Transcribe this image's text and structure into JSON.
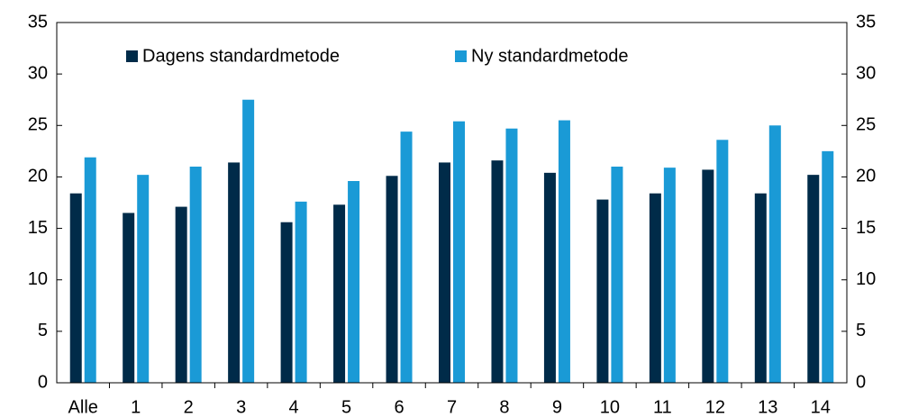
{
  "chart_data": {
    "type": "bar",
    "categories": [
      "Alle",
      "1",
      "2",
      "3",
      "4",
      "5",
      "6",
      "7",
      "8",
      "9",
      "10",
      "11",
      "12",
      "13",
      "14"
    ],
    "series": [
      {
        "name": "Dagens standardmetode",
        "color": "#002b49",
        "values": [
          18.4,
          16.5,
          17.1,
          21.4,
          15.6,
          17.3,
          20.1,
          21.4,
          21.6,
          20.4,
          17.8,
          18.4,
          20.7,
          18.4,
          20.2
        ]
      },
      {
        "name": "Ny standardmetode",
        "color": "#1a9ad6",
        "values": [
          21.9,
          20.2,
          21.0,
          27.5,
          17.6,
          19.6,
          24.4,
          25.4,
          24.7,
          25.5,
          21.0,
          20.9,
          23.6,
          25.0,
          22.5
        ]
      }
    ],
    "ylim": [
      0,
      35
    ],
    "yticks": [
      0,
      5,
      10,
      15,
      20,
      25,
      30,
      35
    ],
    "y2lim": [
      0,
      35
    ],
    "y2ticks": [
      0,
      5,
      10,
      15,
      20,
      25,
      30,
      35
    ],
    "legend": "top",
    "grid": false
  }
}
